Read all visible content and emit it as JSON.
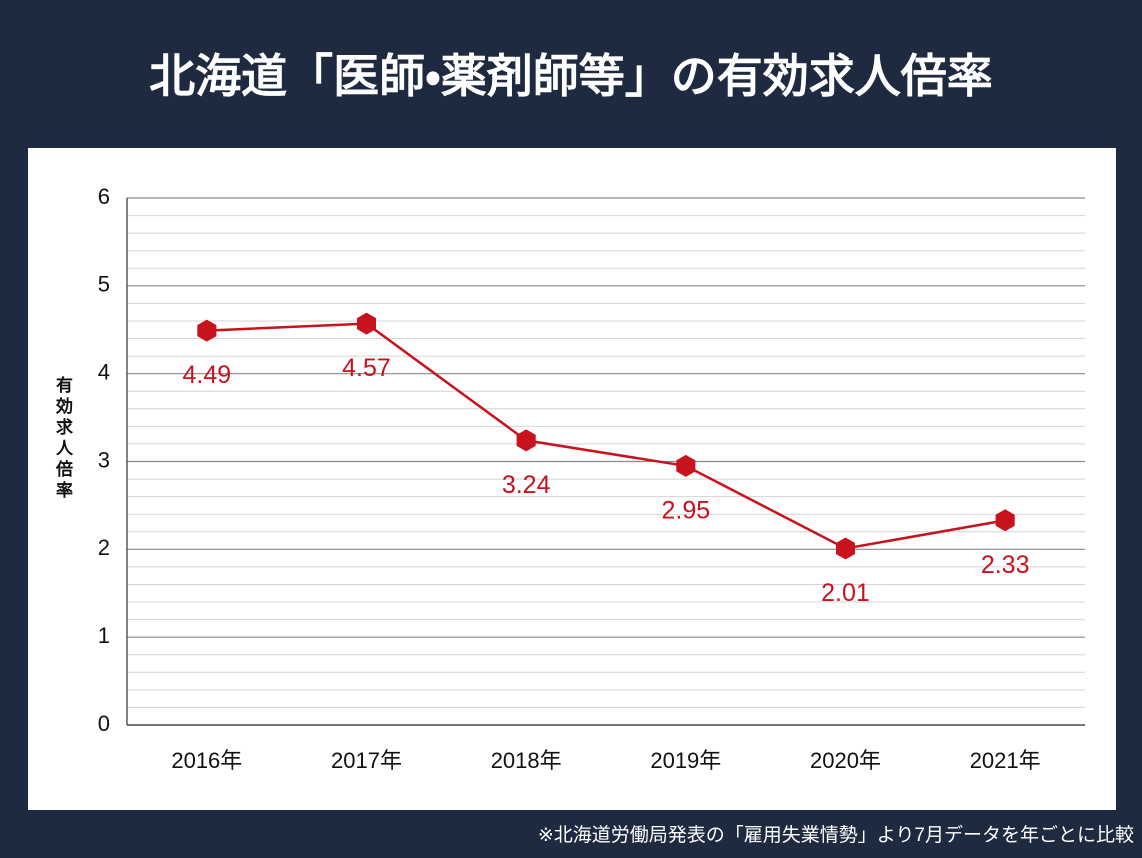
{
  "chart_data": {
    "type": "line",
    "title": "北海道「医師・薬剤師等」の有効求人倍率",
    "y_label": "有効求人倍率",
    "note": "※北海道労働局発表の「雇用失業情勢」より7月データを年ごとに比較",
    "categories": [
      "2016年",
      "2017年",
      "2018年",
      "2019年",
      "2020年",
      "2021年"
    ],
    "values": [
      4.49,
      4.57,
      3.24,
      2.95,
      2.01,
      2.33
    ],
    "color": "#c8121e",
    "ylim": [
      0,
      6
    ],
    "yticks": [
      0,
      1,
      2,
      3,
      4,
      5,
      6
    ],
    "grid": true,
    "minor_grid_per_tick": 5
  }
}
